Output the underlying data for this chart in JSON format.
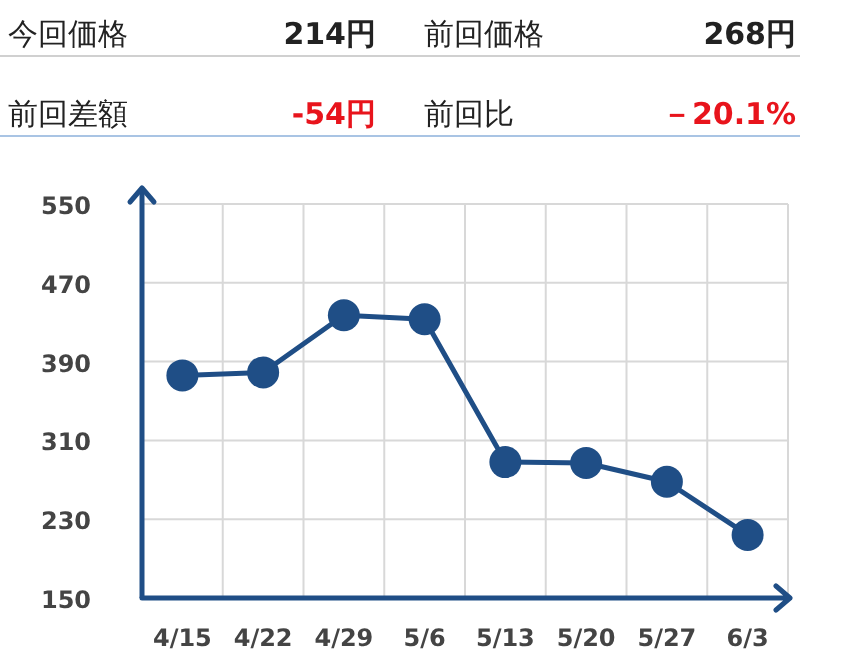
{
  "chart_data": [
    {
      "type": "other",
      "annotations": [
        "今回価格",
        "214円",
        "前回価格",
        "268円",
        "前回差額",
        "-54円",
        "前回比",
        "－20.1%"
      ]
    },
    {
      "type": "line",
      "categories": [
        "4/15",
        "4/22",
        "4/29",
        "5/6",
        "5/13",
        "5/20",
        "5/27",
        "6/3"
      ],
      "series": [
        {
          "color": "#1f4e86",
          "values": [
            376,
            379,
            437,
            433,
            288,
            287,
            268,
            214
          ]
        }
      ],
      "ylim": [
        150,
        550
      ],
      "yticks": [
        150,
        230,
        310,
        390,
        470,
        550
      ],
      "grid": true,
      "marker": "circle",
      "line_style": "solid"
    }
  ]
}
